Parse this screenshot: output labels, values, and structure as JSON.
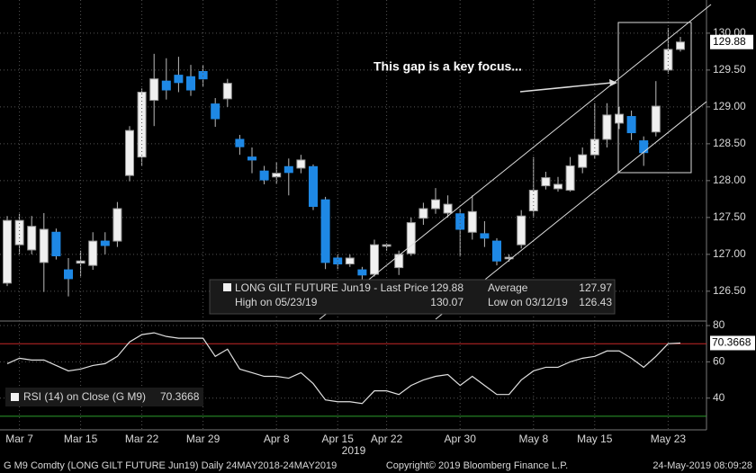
{
  "chart_data": [
    {
      "type": "candlestick",
      "name": "LONG GILT FUTURE Jun19 - Last Price",
      "open": [
        126.61,
        127.13,
        127.06,
        126.89,
        127.3,
        126.79,
        126.88,
        126.85,
        127.18,
        127.18,
        128.07,
        128.32,
        129.09,
        129.35,
        129.43,
        129.41,
        129.48,
        129.04,
        129.11,
        128.56,
        128.32,
        128.13,
        128.05,
        128.19,
        128.17,
        128.19,
        127.74,
        126.95,
        126.87,
        126.79,
        126.73,
        127.11,
        126.82,
        127.01,
        127.49,
        127.62,
        127.56,
        127.55,
        127.3,
        127.28,
        127.18,
        126.94,
        127.13,
        127.59,
        127.93,
        127.89,
        127.87,
        128.18,
        128.35,
        128.56,
        128.78,
        128.87,
        128.54,
        128.66,
        129.5,
        129.78
      ],
      "high": [
        127.52,
        127.55,
        127.52,
        127.56,
        127.35,
        126.95,
        127.05,
        127.3,
        127.3,
        127.71,
        128.74,
        129.25,
        129.72,
        129.66,
        129.68,
        129.57,
        129.57,
        129.12,
        129.38,
        128.62,
        128.45,
        128.2,
        128.25,
        128.3,
        128.35,
        128.22,
        127.78,
        127.0,
        127.0,
        126.83,
        127.2,
        127.15,
        127.05,
        127.5,
        127.7,
        127.9,
        127.8,
        127.62,
        127.8,
        127.45,
        127.22,
        127.0,
        127.6,
        128.32,
        128.12,
        128.05,
        128.32,
        128.45,
        129.05,
        129.05,
        129.0,
        128.95,
        128.6,
        129.35,
        130.07,
        129.95
      ],
      "low": [
        126.57,
        127.0,
        127.0,
        126.49,
        126.93,
        126.43,
        126.7,
        126.79,
        127.0,
        127.1,
        127.99,
        128.2,
        128.74,
        129.1,
        129.2,
        129.15,
        129.28,
        128.73,
        129.0,
        128.35,
        128.1,
        127.95,
        127.96,
        127.8,
        128.1,
        127.6,
        126.8,
        126.8,
        126.83,
        126.65,
        126.7,
        127.05,
        126.72,
        126.98,
        127.4,
        127.55,
        127.5,
        126.97,
        127.2,
        127.1,
        126.85,
        126.9,
        127.08,
        127.5,
        127.88,
        127.85,
        127.85,
        128.1,
        128.3,
        128.45,
        128.7,
        128.55,
        128.2,
        128.6,
        129.45,
        129.75
      ],
      "close": [
        127.46,
        127.46,
        127.38,
        127.34,
        126.98,
        126.67,
        126.91,
        127.18,
        127.12,
        127.62,
        128.68,
        129.2,
        129.38,
        129.23,
        129.33,
        129.23,
        129.38,
        128.84,
        129.32,
        128.46,
        128.28,
        128.01,
        128.1,
        128.11,
        128.28,
        127.65,
        126.89,
        126.87,
        126.95,
        126.72,
        127.13,
        127.13,
        127.0,
        127.43,
        127.62,
        127.74,
        127.68,
        127.34,
        127.58,
        127.22,
        126.91,
        126.96,
        127.52,
        127.87,
        128.04,
        127.95,
        128.2,
        128.35,
        128.56,
        128.89,
        128.9,
        128.65,
        128.38,
        129.01,
        129.78,
        129.88
      ],
      "up_color": "#f0f0f0",
      "down_color": "#1e88e5",
      "average_label": "Average",
      "average": 127.97,
      "high_label": "High on 05/23/19",
      "low_label": "Low on 03/12/19",
      "ylim": [
        126.12,
        130.45
      ],
      "yticks": [
        {
          "value": 130,
          "label": "130.00"
        },
        {
          "value": 129.5,
          "label": "129.50"
        },
        {
          "value": 129,
          "label": "129.00"
        },
        {
          "value": 128.5,
          "label": "128.50"
        },
        {
          "value": 128,
          "label": "128.00"
        },
        {
          "value": 127.5,
          "label": "127.50"
        },
        {
          "value": 127,
          "label": "127.00"
        },
        {
          "value": 126.5,
          "label": "126.50"
        }
      ],
      "grid": true,
      "annotations": [
        "This gap is a key focus..."
      ]
    },
    {
      "type": "line",
      "categories": [
        null,
        "Mar 7",
        null,
        null,
        null,
        null,
        "Mar 15",
        null,
        null,
        null,
        null,
        "Mar 22",
        null,
        null,
        null,
        null,
        "Mar 29",
        null,
        null,
        null,
        null,
        null,
        "Apr 8",
        null,
        null,
        null,
        null,
        "Apr 15",
        null,
        null,
        null,
        "Apr 22",
        null,
        null,
        null,
        null,
        null,
        "Apr 30",
        null,
        null,
        null,
        null,
        null,
        "May 8",
        null,
        null,
        null,
        null,
        "May 15",
        null,
        null,
        null,
        null,
        null,
        "May 23",
        null
      ],
      "year_label": "2019",
      "series": [
        {
          "name": "RSI (14)  on Close (G M9)",
          "color": "#e0e0e0",
          "values": [
            59,
            62,
            61,
            61,
            58,
            55,
            56,
            58,
            59,
            63,
            71,
            75,
            76,
            74,
            73,
            73,
            73,
            63,
            67,
            56,
            54,
            52,
            52,
            51,
            54,
            48,
            39,
            38,
            38,
            37,
            44,
            44,
            42,
            47,
            50,
            52,
            53,
            47,
            52,
            47,
            42,
            42,
            50,
            55,
            57,
            57,
            60,
            62,
            63,
            66,
            66,
            62,
            57,
            63,
            70,
            70.3668
          ]
        }
      ],
      "reference_lines": [
        {
          "value": 70,
          "color": "#c62828"
        },
        {
          "value": 30,
          "color": "#2e9e2e"
        }
      ],
      "ylim": [
        24,
        82
      ],
      "yticks": [
        80,
        60,
        40
      ],
      "grid": true
    }
  ],
  "footer": {
    "left": "G M9 Comdty (LONG GILT FUTURE  Jun19)  Daily 24MAY2018-24MAY2019",
    "center": "Copyright© 2019 Bloomberg Finance L.P.",
    "right": "24-May-2019 08:09:28"
  }
}
